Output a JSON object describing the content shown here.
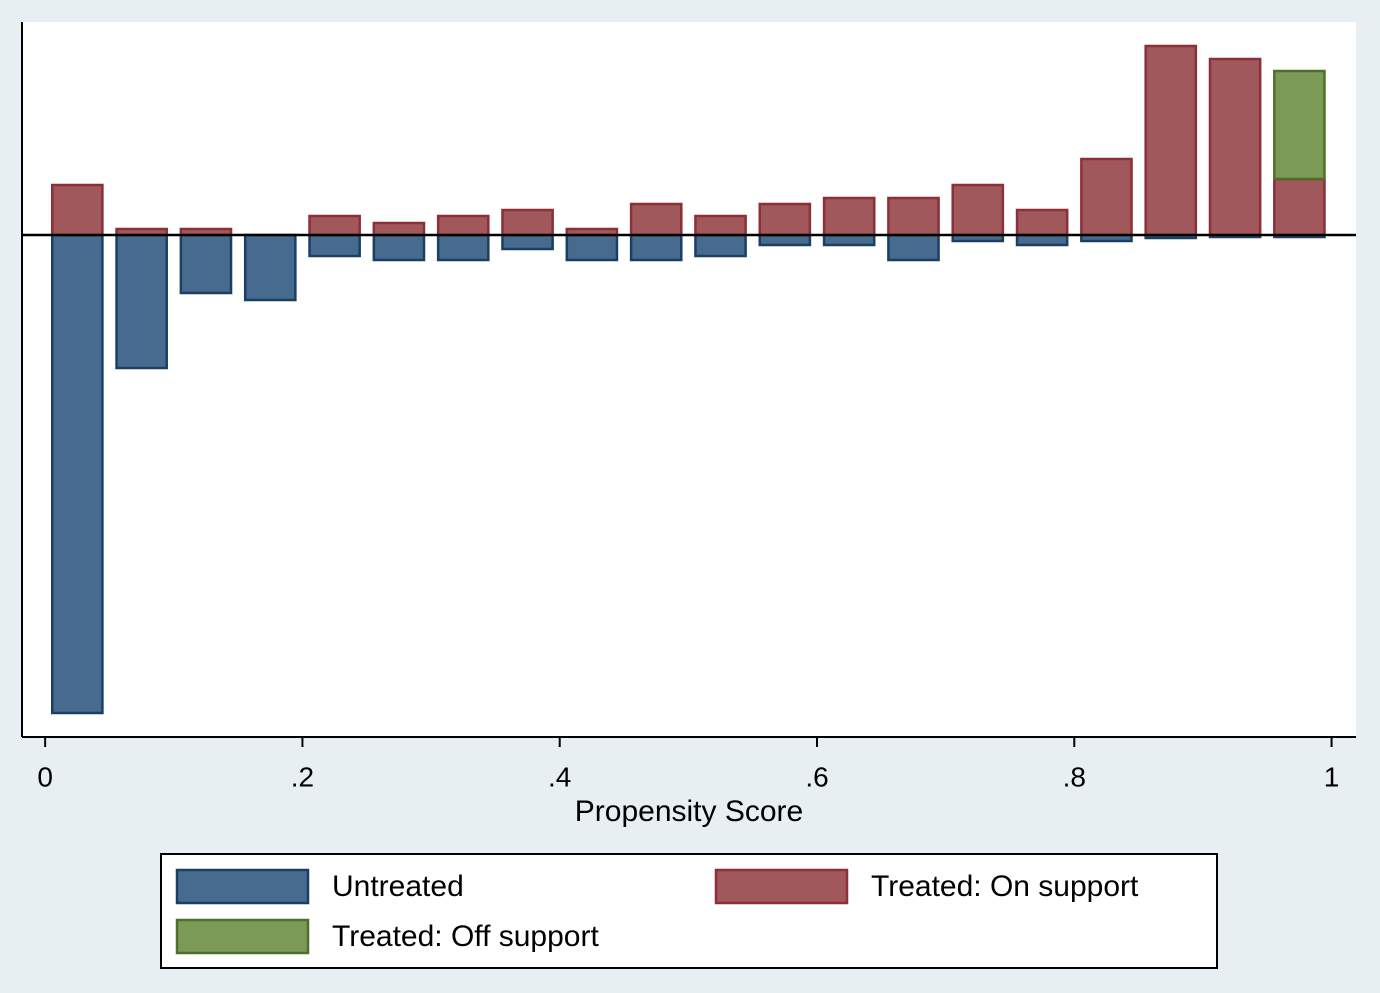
{
  "chart_data": {
    "type": "histogram",
    "x_label": "Propensity Score",
    "bins": [
      0,
      0.05,
      0.1,
      0.15,
      0.2,
      0.25,
      0.3,
      0.35,
      0.4,
      0.45,
      0.5,
      0.55,
      0.6,
      0.65,
      0.7,
      0.75,
      0.8,
      0.85,
      0.9,
      0.95,
      1
    ],
    "series": [
      {
        "name": "Untreated",
        "color": "#476b8e",
        "edge": "#1a3f62",
        "values": [
          -478,
          -133,
          -58,
          -65,
          -21,
          -25,
          -25,
          -14,
          -25,
          -25,
          -21,
          -10,
          -10,
          -25,
          -6,
          -10,
          -6,
          -3,
          -2,
          -2
        ]
      },
      {
        "name": "Treated: On support",
        "color": "#a0585d",
        "edge": "#8c2f37",
        "values": [
          50,
          6,
          6,
          0,
          19,
          12,
          19,
          25,
          6,
          31,
          19,
          31,
          37,
          37,
          50,
          25,
          76,
          189,
          176,
          56
        ]
      },
      {
        "name": "Treated: Off support",
        "color": "#7a9a55",
        "edge": "#4f6f2c",
        "values": [
          null,
          null,
          null,
          null,
          null,
          null,
          null,
          null,
          null,
          null,
          null,
          null,
          null,
          null,
          null,
          null,
          null,
          null,
          null,
          108
        ]
      }
    ],
    "xlim": [
      -0.018,
      1.019
    ],
    "ylim": [
      -502,
      213
    ],
    "xticks": [
      0,
      {
        "value": 0.2,
        "label": ".2"
      },
      {
        "value": 0.4,
        "label": ".4"
      },
      {
        "value": 0.6,
        "label": ".6"
      },
      {
        "value": 0.8,
        "label": ".8"
      },
      1
    ]
  }
}
